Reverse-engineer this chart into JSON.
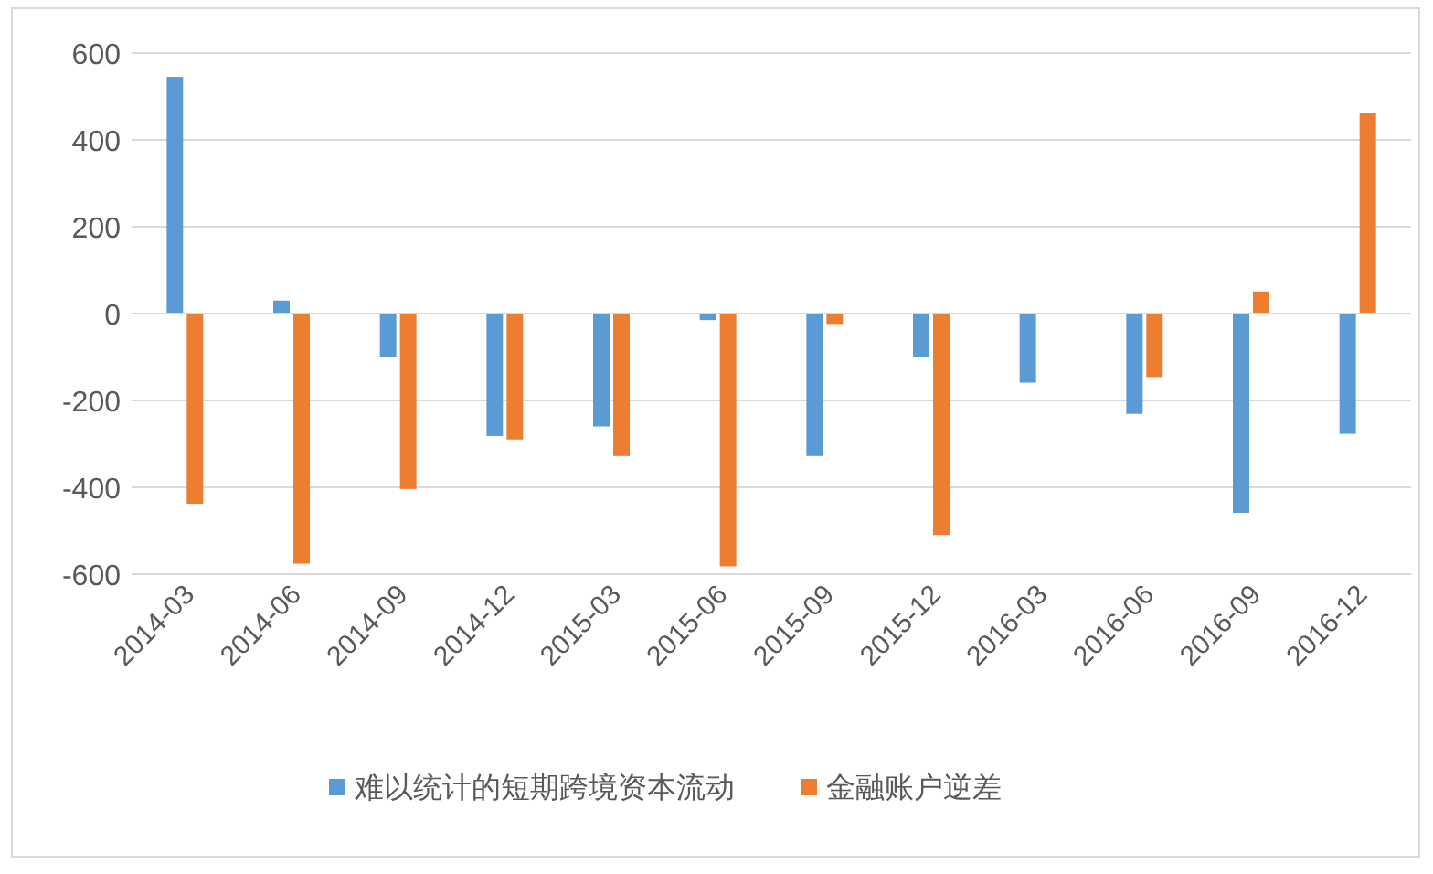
{
  "chart_data": {
    "type": "bar",
    "categories": [
      "2014-03",
      "2014-06",
      "2014-09",
      "2014-12",
      "2015-03",
      "2015-06",
      "2015-09",
      "2015-12",
      "2016-03",
      "2016-06",
      "2016-09",
      "2016-12"
    ],
    "series": [
      {
        "name": "难以统计的短期跨境资本流动",
        "color": "#5b9bd5",
        "values": [
          545,
          30,
          -100,
          -282,
          -260,
          -15,
          -328,
          -100,
          -159,
          -231,
          -459,
          -277
        ]
      },
      {
        "name": "金融账户逆差",
        "color": "#ed7d31",
        "values": [
          -438,
          -576,
          -404,
          -290,
          -328,
          -582,
          -24,
          -510,
          null,
          -146,
          51,
          461
        ]
      }
    ],
    "ylim": [
      -600,
      600
    ],
    "yticks": [
      -600,
      -400,
      -200,
      0,
      200,
      400,
      600
    ],
    "grid": "y",
    "legend": "bottom"
  }
}
